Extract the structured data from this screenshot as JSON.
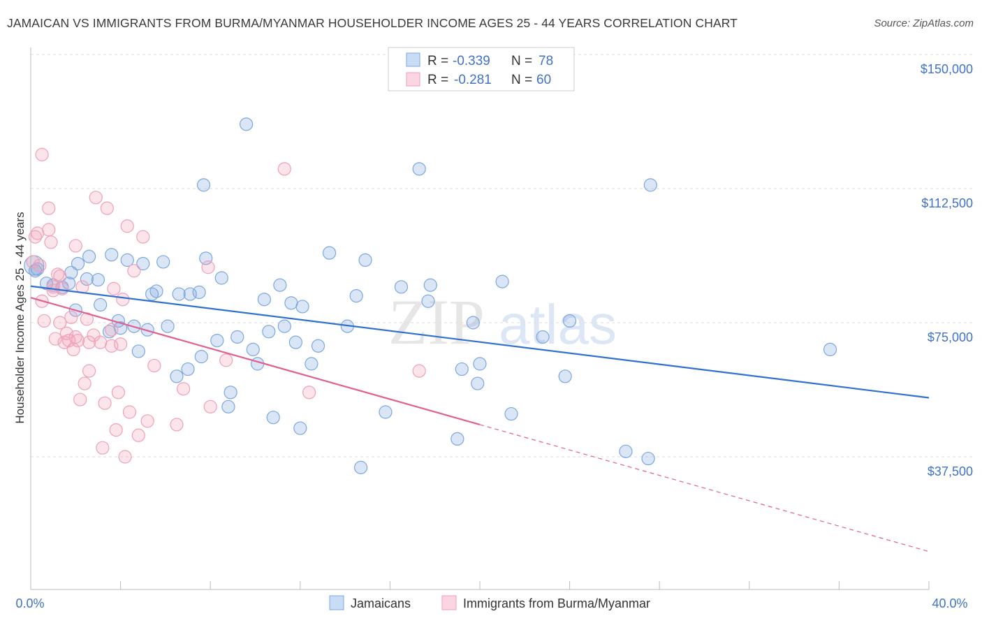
{
  "title": "JAMAICAN VS IMMIGRANTS FROM BURMA/MYANMAR HOUSEHOLDER INCOME AGES 25 - 44 YEARS CORRELATION CHART",
  "source": "Source: ZipAtlas.com",
  "watermark": {
    "zip": "ZIP",
    "atlas": "atlas"
  },
  "legend_box": {
    "rows": [
      {
        "r_label": "R =",
        "r_value": "-0.339",
        "n_label": "N =",
        "n_value": "78",
        "color": "#7ba7e0"
      },
      {
        "r_label": "R =",
        "r_value": "-0.281",
        "n_label": "N =",
        "n_value": "60",
        "color": "#f0a0b8"
      }
    ]
  },
  "bottom_legend": [
    "Jamaicans",
    "Immigrants from Burma/Myanmar"
  ],
  "chart_data": {
    "type": "scatter",
    "title": "JAMAICAN VS IMMIGRANTS FROM BURMA/MYANMAR HOUSEHOLDER INCOME AGES 25 - 44 YEARS CORRELATION CHART",
    "xlabel": "",
    "ylabel": "Householder Income Ages 25 - 44 years",
    "xlim": [
      0,
      40
    ],
    "ylim": [
      10000,
      155000
    ],
    "x_tick_labels": [
      "0.0%",
      "40.0%"
    ],
    "y_ticks": [
      37500,
      75000,
      112500,
      150000
    ],
    "y_tick_labels": [
      "$37,500",
      "$75,000",
      "$112,500",
      "$150,000"
    ],
    "grid": "horizontal dashed",
    "legend_position": "top-center",
    "series": [
      {
        "name": "Jamaicans",
        "color": "#7ba7e0",
        "line_color": "#3070d0",
        "r": -0.339,
        "n": 78,
        "trend": {
          "x": [
            0,
            40
          ],
          "y": [
            85200,
            54000
          ]
        },
        "points": [
          [
            0.15,
            91000
          ],
          [
            0.3,
            90000
          ],
          [
            0.7,
            86000
          ],
          [
            1.0,
            85500
          ],
          [
            1.4,
            84900
          ],
          [
            1.8,
            89000
          ],
          [
            2.1,
            91500
          ],
          [
            2.5,
            87200
          ],
          [
            2.0,
            78500
          ],
          [
            1.7,
            86000
          ],
          [
            2.6,
            93500
          ],
          [
            3.0,
            87000
          ],
          [
            3.1,
            80000
          ],
          [
            3.5,
            72500
          ],
          [
            3.6,
            94000
          ],
          [
            3.9,
            75500
          ],
          [
            4.0,
            73500
          ],
          [
            4.3,
            92500
          ],
          [
            4.6,
            74000
          ],
          [
            4.8,
            67000
          ],
          [
            5.0,
            91500
          ],
          [
            5.2,
            73000
          ],
          [
            5.4,
            83000
          ],
          [
            5.6,
            83800
          ],
          [
            5.9,
            92000
          ],
          [
            6.1,
            74000
          ],
          [
            6.6,
            83000
          ],
          [
            6.5,
            60000
          ],
          [
            7.0,
            62000
          ],
          [
            7.1,
            83000
          ],
          [
            7.5,
            83500
          ],
          [
            7.6,
            65500
          ],
          [
            7.7,
            113500
          ],
          [
            7.8,
            93000
          ],
          [
            8.3,
            70000
          ],
          [
            8.5,
            87500
          ],
          [
            8.8,
            51500
          ],
          [
            8.9,
            55500
          ],
          [
            9.2,
            71000
          ],
          [
            9.6,
            130500
          ],
          [
            9.9,
            67500
          ],
          [
            10.1,
            63500
          ],
          [
            10.4,
            81500
          ],
          [
            10.6,
            72500
          ],
          [
            10.8,
            48500
          ],
          [
            11.1,
            85500
          ],
          [
            11.3,
            74000
          ],
          [
            11.6,
            80500
          ],
          [
            11.8,
            69500
          ],
          [
            12.1,
            79500
          ],
          [
            12.0,
            45500
          ],
          [
            12.5,
            63500
          ],
          [
            12.8,
            68500
          ],
          [
            13.3,
            94500
          ],
          [
            14.1,
            74000
          ],
          [
            14.5,
            82500
          ],
          [
            14.7,
            34500
          ],
          [
            14.9,
            92500
          ],
          [
            15.8,
            50000
          ],
          [
            16.5,
            85000
          ],
          [
            17.3,
            118000
          ],
          [
            17.7,
            81000
          ],
          [
            17.8,
            85500
          ],
          [
            19.0,
            42500
          ],
          [
            19.2,
            62000
          ],
          [
            19.7,
            75000
          ],
          [
            19.9,
            58000
          ],
          [
            20.0,
            63500
          ],
          [
            21.0,
            86500
          ],
          [
            21.4,
            49500
          ],
          [
            22.8,
            71000
          ],
          [
            23.8,
            60000
          ],
          [
            24.0,
            75500
          ],
          [
            26.5,
            39000
          ],
          [
            27.5,
            37000
          ],
          [
            27.6,
            113500
          ],
          [
            35.6,
            67500
          ],
          [
            0.2,
            89500
          ]
        ]
      },
      {
        "name": "Immigrants from Burma/Myanmar",
        "color": "#f0a0b8",
        "line_color": "#e06090",
        "r": -0.281,
        "n": 60,
        "trend": {
          "x": [
            0,
            20
          ],
          "y": [
            82000,
            46500
          ]
        },
        "trend_dashed_extension": {
          "x": [
            20,
            40
          ],
          "y": [
            46500,
            11000
          ]
        },
        "points": [
          [
            0.1,
            92000
          ],
          [
            0.2,
            99000
          ],
          [
            0.3,
            100000
          ],
          [
            0.4,
            91000
          ],
          [
            0.5,
            122000
          ],
          [
            0.5,
            81000
          ],
          [
            0.6,
            75500
          ],
          [
            0.8,
            107000
          ],
          [
            0.8,
            101000
          ],
          [
            0.9,
            97500
          ],
          [
            1.0,
            85000
          ],
          [
            1.1,
            70500
          ],
          [
            1.2,
            88500
          ],
          [
            1.3,
            75000
          ],
          [
            1.3,
            88000
          ],
          [
            1.4,
            84500
          ],
          [
            1.5,
            69500
          ],
          [
            1.6,
            72000
          ],
          [
            1.7,
            70000
          ],
          [
            1.8,
            76500
          ],
          [
            1.9,
            67500
          ],
          [
            2.0,
            96500
          ],
          [
            2.1,
            70000
          ],
          [
            2.2,
            53500
          ],
          [
            2.3,
            85000
          ],
          [
            2.4,
            58000
          ],
          [
            2.5,
            76000
          ],
          [
            2.6,
            61500
          ],
          [
            2.6,
            69500
          ],
          [
            2.8,
            71500
          ],
          [
            2.9,
            110000
          ],
          [
            3.1,
            69500
          ],
          [
            3.2,
            40000
          ],
          [
            3.3,
            52500
          ],
          [
            3.4,
            107000
          ],
          [
            3.6,
            68500
          ],
          [
            3.6,
            73000
          ],
          [
            3.7,
            84500
          ],
          [
            3.8,
            45000
          ],
          [
            3.9,
            55500
          ],
          [
            4.0,
            69000
          ],
          [
            4.1,
            81500
          ],
          [
            4.2,
            37500
          ],
          [
            4.3,
            102000
          ],
          [
            4.4,
            50000
          ],
          [
            4.6,
            89500
          ],
          [
            4.8,
            43500
          ],
          [
            5.0,
            99000
          ],
          [
            5.2,
            47500
          ],
          [
            5.5,
            63000
          ],
          [
            6.5,
            46500
          ],
          [
            6.8,
            56500
          ],
          [
            7.9,
            90500
          ],
          [
            8.0,
            51500
          ],
          [
            8.7,
            64500
          ],
          [
            11.3,
            118000
          ],
          [
            12.4,
            55500
          ],
          [
            17.3,
            61500
          ],
          [
            1.0,
            84000
          ],
          [
            2.0,
            71000
          ]
        ]
      }
    ]
  }
}
